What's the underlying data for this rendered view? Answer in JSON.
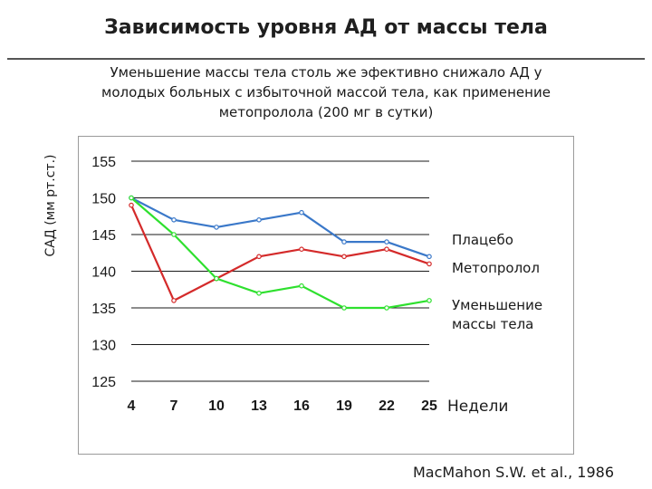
{
  "title": "Зависимость уровня АД от массы тела",
  "subtitle": "Уменьшение массы тела столь же эфективно снижало АД у молодых больных с избыточной массой тела, как применение метопролола (200 мг в сутки)",
  "citation": "MacMahon S.W. et al., 1986",
  "chart_data": {
    "type": "line",
    "title": "",
    "ylabel": "САД (мм рт.ст.)",
    "xlabel": "Недели",
    "x": [
      4,
      7,
      10,
      13,
      16,
      19,
      22,
      25
    ],
    "ylim": [
      125,
      155
    ],
    "yticks": [
      155,
      150,
      145,
      140,
      135,
      130,
      125
    ],
    "grid": true,
    "legend": "right",
    "series": [
      {
        "name": "Плацебо",
        "color": "#3a78c9",
        "values": [
          150,
          147,
          146,
          147,
          148,
          144,
          144,
          142
        ]
      },
      {
        "name": "Метопролол",
        "color": "#d42a2a",
        "values": [
          149,
          136,
          139,
          142,
          143,
          142,
          143,
          141
        ]
      },
      {
        "name": "Уменьшение массы тела",
        "color": "#2ee02e",
        "values": [
          150,
          145,
          139,
          137,
          138,
          135,
          135,
          136
        ]
      }
    ]
  }
}
